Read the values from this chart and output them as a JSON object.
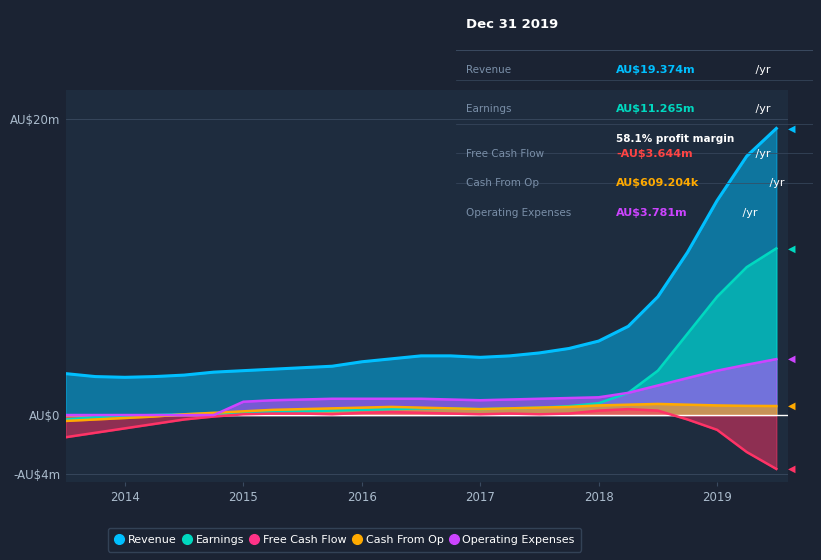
{
  "bg_color": "#1b2333",
  "plot_bg_color": "#1e2c3e",
  "years": [
    2013.5,
    2013.75,
    2014.0,
    2014.25,
    2014.5,
    2014.75,
    2015.0,
    2015.25,
    2015.5,
    2015.75,
    2016.0,
    2016.25,
    2016.5,
    2016.75,
    2017.0,
    2017.25,
    2017.5,
    2017.75,
    2018.0,
    2018.25,
    2018.5,
    2018.75,
    2019.0,
    2019.25,
    2019.5
  ],
  "revenue": [
    2.8,
    2.6,
    2.55,
    2.6,
    2.7,
    2.9,
    3.0,
    3.1,
    3.2,
    3.3,
    3.6,
    3.8,
    4.0,
    4.0,
    3.9,
    4.0,
    4.2,
    4.5,
    5.0,
    6.0,
    8.0,
    11.0,
    14.5,
    17.5,
    19.374
  ],
  "earnings": [
    -0.3,
    -0.15,
    -0.05,
    0.0,
    0.05,
    0.1,
    0.15,
    0.2,
    0.25,
    0.3,
    0.35,
    0.4,
    0.45,
    0.45,
    0.4,
    0.45,
    0.5,
    0.6,
    0.8,
    1.5,
    3.0,
    5.5,
    8.0,
    10.0,
    11.265
  ],
  "free_cash_flow": [
    -1.5,
    -1.2,
    -0.9,
    -0.6,
    -0.3,
    -0.1,
    0.05,
    0.1,
    0.1,
    0.05,
    0.15,
    0.2,
    0.15,
    0.1,
    0.05,
    0.1,
    0.05,
    0.1,
    0.3,
    0.4,
    0.3,
    -0.3,
    -1.0,
    -2.5,
    -3.644
  ],
  "cash_from_op": [
    -0.4,
    -0.3,
    -0.2,
    -0.1,
    0.05,
    0.15,
    0.25,
    0.35,
    0.4,
    0.45,
    0.5,
    0.55,
    0.5,
    0.45,
    0.4,
    0.45,
    0.5,
    0.55,
    0.65,
    0.7,
    0.75,
    0.7,
    0.65,
    0.62,
    0.609
  ],
  "operating_expenses": [
    0.0,
    0.0,
    0.0,
    0.0,
    0.0,
    0.0,
    0.9,
    1.0,
    1.05,
    1.1,
    1.1,
    1.1,
    1.1,
    1.05,
    1.0,
    1.05,
    1.1,
    1.15,
    1.2,
    1.5,
    2.0,
    2.5,
    3.0,
    3.4,
    3.781
  ],
  "revenue_color": "#00bfff",
  "earnings_color": "#00d9c0",
  "free_cash_flow_color": "#ff3366",
  "cash_from_op_color": "#ffaa00",
  "operating_expenses_color": "#cc44ff",
  "ylim": [
    -4.5,
    22
  ],
  "ytick_vals": [
    -4,
    0,
    20
  ],
  "ytick_labels": [
    "-AU$4m",
    "AU$0",
    "AU$20m"
  ],
  "xtick_vals": [
    2014,
    2015,
    2016,
    2017,
    2018,
    2019
  ],
  "xmin": 2013.5,
  "xmax": 2019.6,
  "info_box": {
    "title": "Dec 31 2019",
    "rows": [
      {
        "label": "Revenue",
        "value": "AU$19.374m",
        "unit": " /yr",
        "color": "#00bfff",
        "extra": null
      },
      {
        "label": "Earnings",
        "value": "AU$11.265m",
        "unit": " /yr",
        "color": "#00d9c0",
        "extra": "58.1% profit margin"
      },
      {
        "label": "Free Cash Flow",
        "value": "-AU$3.644m",
        "unit": " /yr",
        "color": "#ff4444",
        "extra": null
      },
      {
        "label": "Cash From Op",
        "value": "AU$609.204k",
        "unit": " /yr",
        "color": "#ffaa00",
        "extra": null
      },
      {
        "label": "Operating Expenses",
        "value": "AU$3.781m",
        "unit": " /yr",
        "color": "#cc44ff",
        "extra": null
      }
    ],
    "bg": "#080e1a",
    "border": "#3a4a60",
    "title_color": "#ffffff",
    "label_color": "#7a8fa8"
  },
  "legend_items": [
    {
      "label": "Revenue",
      "color": "#00bfff"
    },
    {
      "label": "Earnings",
      "color": "#00d9c0"
    },
    {
      "label": "Free Cash Flow",
      "color": "#ff3388"
    },
    {
      "label": "Cash From Op",
      "color": "#ffaa00"
    },
    {
      "label": "Operating Expenses",
      "color": "#cc44ff"
    }
  ],
  "right_labels": [
    {
      "value": 19.374,
      "color": "#00bfff",
      "text": ""
    },
    {
      "value": 11.265,
      "color": "#00d9c0",
      "text": ""
    },
    {
      "value": 0.609,
      "color": "#ffaa00",
      "text": ""
    },
    {
      "value": -3.644,
      "color": "#ff3366",
      "text": ""
    }
  ]
}
